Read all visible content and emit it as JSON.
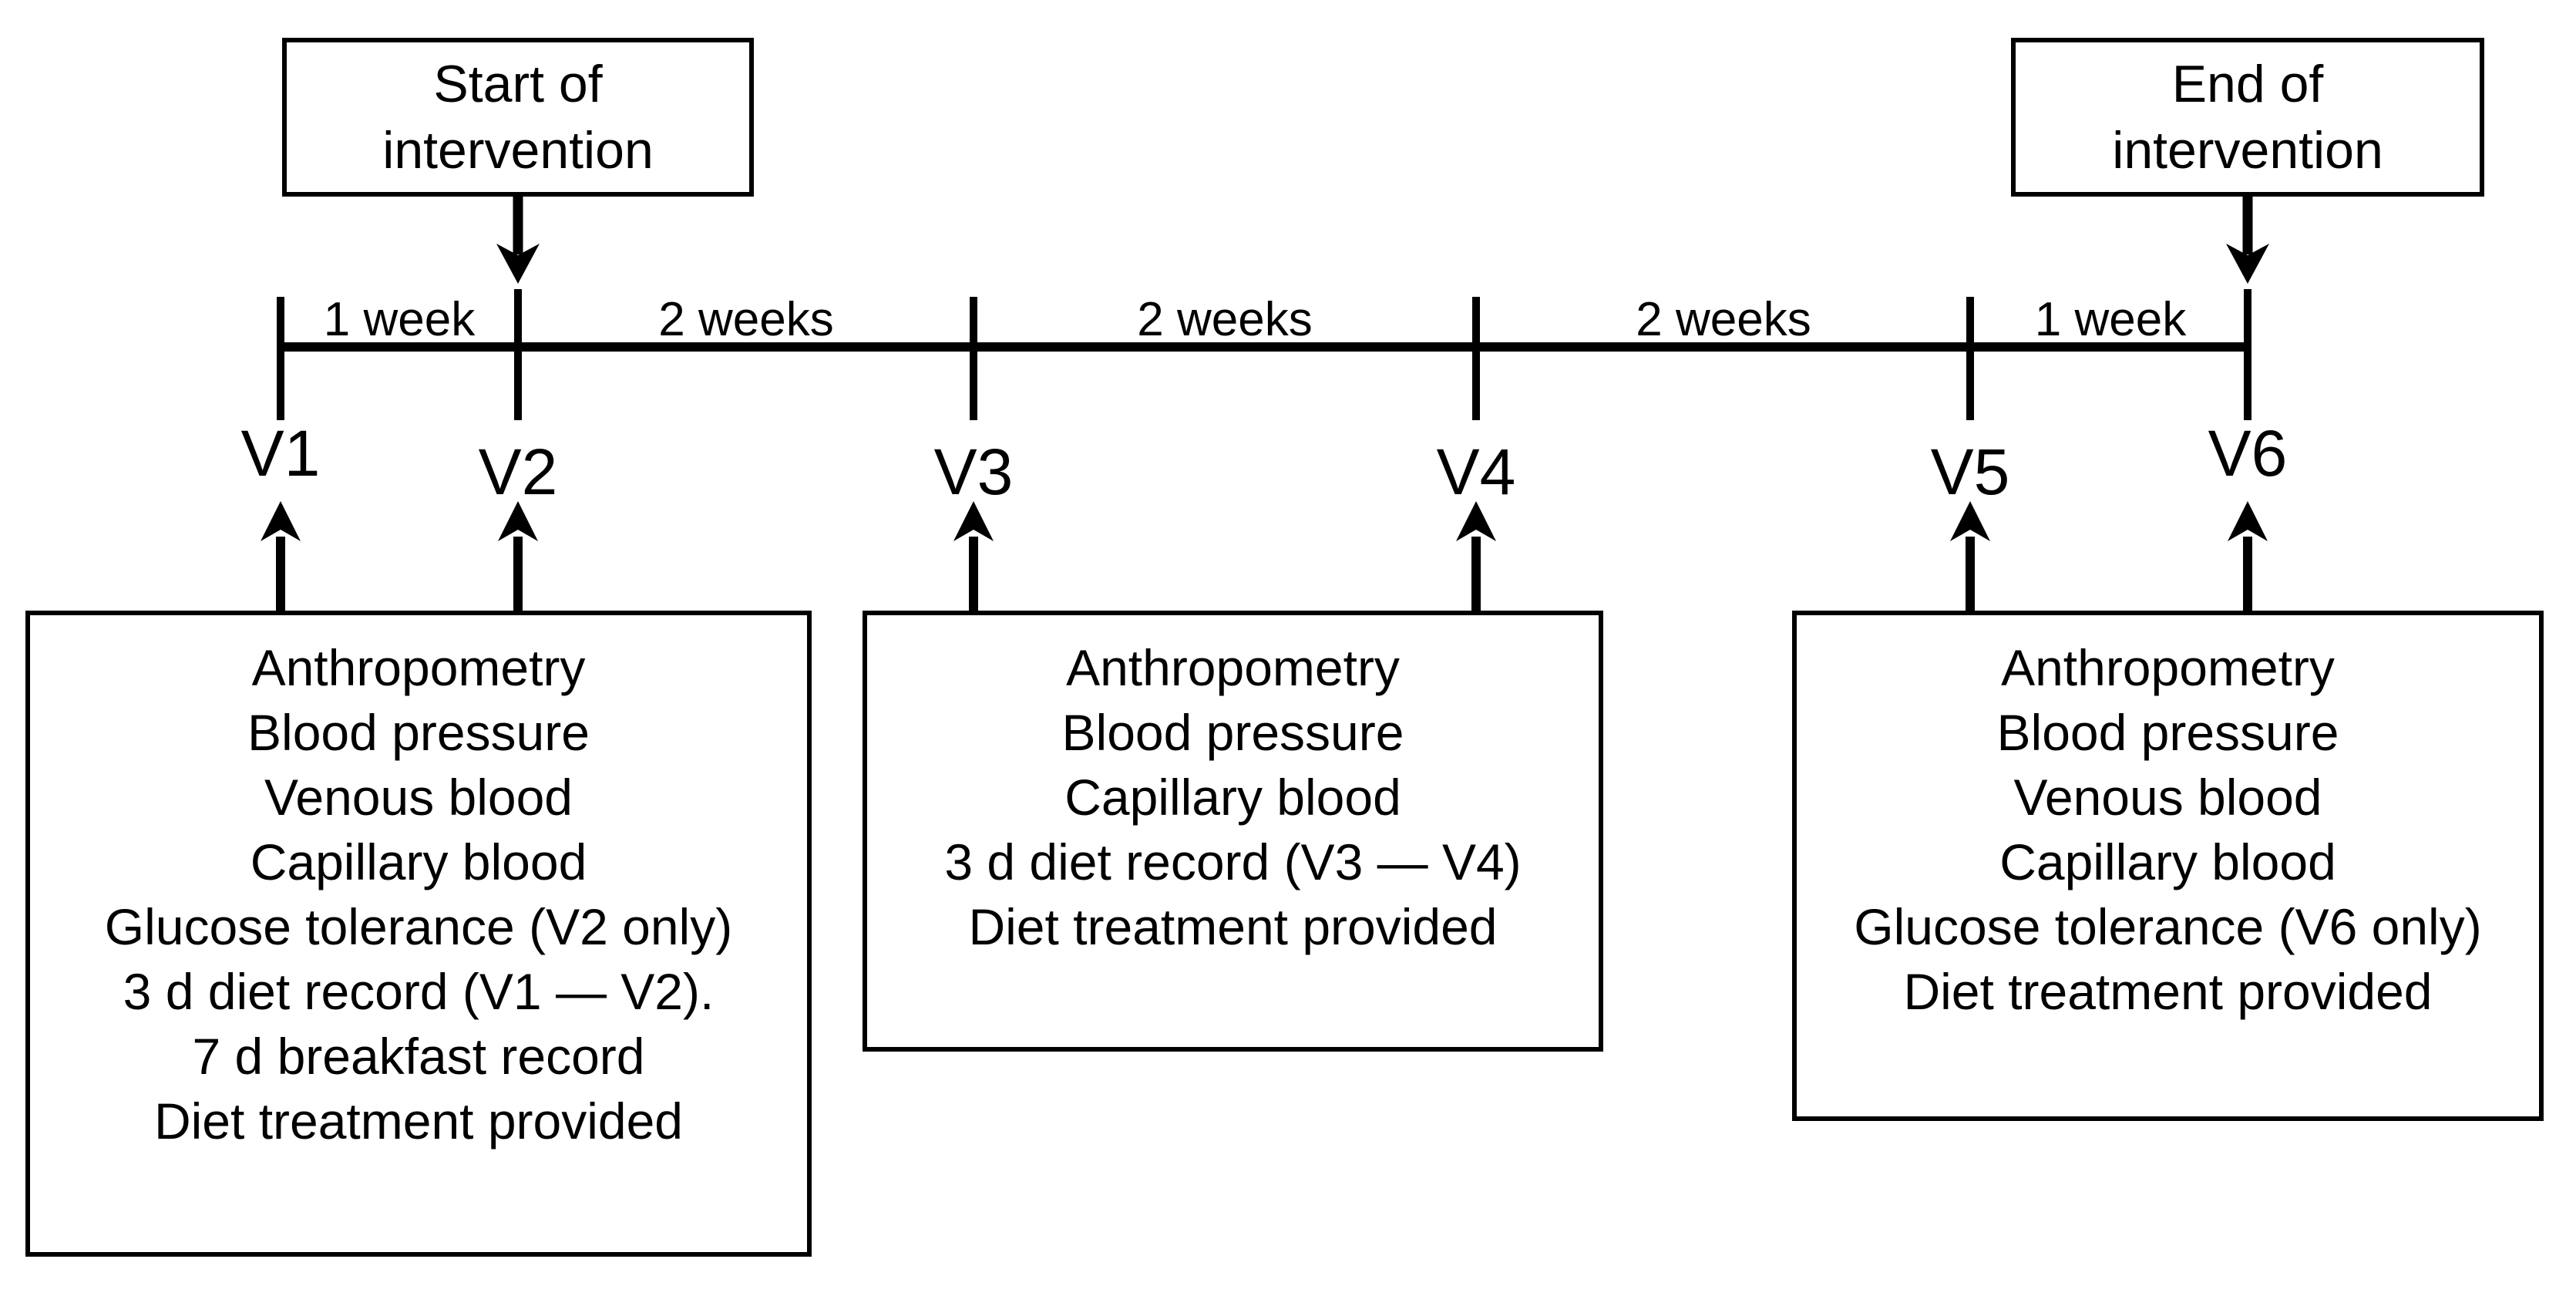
{
  "figure": {
    "background_color": "#ffffff",
    "line_color": "#000000"
  },
  "top_boxes": {
    "start": {
      "label": "Start of intervention"
    },
    "end": {
      "label": "End of intervention"
    }
  },
  "timeline": {
    "interval_labels": [
      "1 week",
      "2 weeks",
      "2 weeks",
      "2 weeks",
      "1 week"
    ],
    "visit_labels": [
      "V1",
      "V2",
      "V3",
      "V4",
      "V5",
      "V6"
    ]
  },
  "assessment_boxes": {
    "box_v1_v2": {
      "lines": [
        "Anthropometry",
        "Blood pressure",
        "Venous blood",
        "Capillary blood",
        "Glucose tolerance (V2 only)",
        "3 d diet record (V1 — V2).",
        "7 d breakfast record",
        "Diet treatment provided"
      ]
    },
    "box_v3_v4": {
      "lines": [
        "Anthropometry",
        "Blood pressure",
        "Capillary blood",
        "3 d diet record (V3 — V4)",
        "Diet treatment provided"
      ]
    },
    "box_v5_v6": {
      "lines": [
        "Anthropometry",
        "Blood pressure",
        "Venous blood",
        "Capillary blood",
        "Glucose tolerance (V6 only)",
        "Diet treatment provided"
      ]
    }
  }
}
